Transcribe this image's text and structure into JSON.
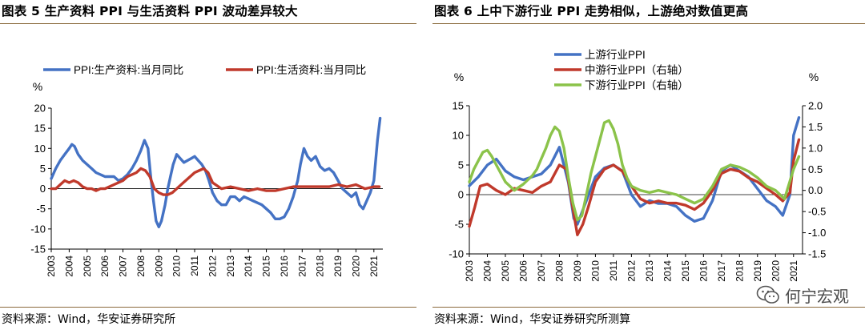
{
  "left": {
    "title": "图表 5 生产资料 PPI 与生活资料 PPI 波动差异较大",
    "source": "资料来源：Wind，华安证券研究所"
  },
  "right": {
    "title": "图表 6 上中下游行业 PPI 走势相似，上游绝对数值更高",
    "source": "资料来源：Wind，华安证券研究所测算"
  },
  "watermark": {
    "text": "何宁宏观",
    "icon": "wechat-icon"
  },
  "chart_data": [
    {
      "type": "line",
      "title": "生产资料 PPI 与生活资料 PPI 波动差异较大",
      "ylabel": "%",
      "ylim": [
        -15,
        20
      ],
      "yticks": [
        -15,
        -10,
        -5,
        0,
        5,
        10,
        15,
        20
      ],
      "xlim": [
        2003.0,
        2021.5
      ],
      "xticks": [
        "2003",
        "2004",
        "2005",
        "2006",
        "2007",
        "2008",
        "2009",
        "2010",
        "2011",
        "2012",
        "2013",
        "2014",
        "2015",
        "2016",
        "2017",
        "2018",
        "2019",
        "2020",
        "2021"
      ],
      "legend": "top",
      "series": [
        {
          "name": "PPI:生产资料:当月同比",
          "color": "#4472C4",
          "x": [
            2003.0,
            2003.25,
            2003.5,
            2003.75,
            2004.0,
            2004.15,
            2004.3,
            2004.5,
            2004.75,
            2005.0,
            2005.25,
            2005.5,
            2005.75,
            2006.0,
            2006.25,
            2006.5,
            2006.75,
            2007.0,
            2007.25,
            2007.5,
            2007.75,
            2008.0,
            2008.2,
            2008.4,
            2008.55,
            2008.7,
            2008.85,
            2009.0,
            2009.15,
            2009.35,
            2009.5,
            2009.65,
            2009.8,
            2010.0,
            2010.2,
            2010.4,
            2010.6,
            2010.8,
            2011.0,
            2011.2,
            2011.4,
            2011.6,
            2011.8,
            2012.0,
            2012.25,
            2012.5,
            2012.75,
            2013.0,
            2013.25,
            2013.5,
            2013.75,
            2014.0,
            2014.25,
            2014.5,
            2014.75,
            2015.0,
            2015.25,
            2015.5,
            2015.75,
            2016.0,
            2016.25,
            2016.5,
            2016.75,
            2016.9,
            2017.1,
            2017.3,
            2017.5,
            2017.75,
            2018.0,
            2018.25,
            2018.5,
            2018.75,
            2019.0,
            2019.25,
            2019.5,
            2019.75,
            2020.0,
            2020.2,
            2020.4,
            2020.6,
            2020.8,
            2021.0,
            2021.2,
            2021.35
          ],
          "values": [
            2.5,
            5,
            7,
            8.5,
            10,
            11,
            10.5,
            8.5,
            7,
            6,
            5,
            4,
            3.5,
            3,
            3,
            3,
            2,
            2.5,
            3.5,
            5,
            7,
            9.5,
            12,
            10,
            3,
            -3,
            -8,
            -9.5,
            -8,
            -4,
            0,
            3,
            6,
            8.5,
            7.5,
            6.5,
            7,
            7.5,
            8,
            7,
            6,
            4.5,
            2,
            -1,
            -3,
            -4,
            -4,
            -2,
            -2,
            -3,
            -2,
            -2.5,
            -3,
            -3.5,
            -4,
            -5,
            -6,
            -7.5,
            -7.5,
            -7,
            -5,
            -2,
            2,
            6,
            10,
            8,
            7,
            8,
            5.5,
            4.5,
            5,
            4,
            2,
            0,
            -1,
            -2,
            -1,
            -4,
            -5,
            -3,
            -1,
            2,
            12,
            17.5
          ]
        },
        {
          "name": "PPI:生活资料:当月同比",
          "color": "#C0392B",
          "x": [
            2003.0,
            2003.25,
            2003.5,
            2003.75,
            2004.0,
            2004.25,
            2004.5,
            2004.75,
            2005.0,
            2005.25,
            2005.5,
            2005.75,
            2006.0,
            2006.25,
            2006.5,
            2006.75,
            2007.0,
            2007.25,
            2007.5,
            2007.75,
            2008.0,
            2008.25,
            2008.5,
            2008.75,
            2009.0,
            2009.25,
            2009.5,
            2009.75,
            2010.0,
            2010.25,
            2010.5,
            2010.75,
            2011.0,
            2011.25,
            2011.5,
            2011.75,
            2012.0,
            2012.5,
            2013.0,
            2013.5,
            2014.0,
            2014.5,
            2015.0,
            2015.5,
            2016.0,
            2016.5,
            2017.0,
            2017.5,
            2018.0,
            2018.5,
            2019.0,
            2019.5,
            2020.0,
            2020.5,
            2021.0,
            2021.3
          ],
          "values": [
            0,
            0,
            1,
            2,
            1.5,
            2,
            1.5,
            0.5,
            0,
            0,
            -0.5,
            0,
            0,
            0.5,
            1,
            1.5,
            2,
            3,
            3.5,
            4,
            5,
            4.5,
            3,
            0,
            -1,
            -1.5,
            -1.5,
            -1,
            0,
            1,
            2,
            3,
            4,
            4.5,
            5,
            4,
            1.5,
            0,
            0.5,
            0,
            -0.5,
            0,
            -0.5,
            -0.5,
            0,
            0.5,
            0.5,
            0.5,
            0.5,
            0.5,
            1,
            0.5,
            1,
            0,
            0.5,
            0.5
          ]
        }
      ]
    },
    {
      "type": "line",
      "title": "上中下游行业 PPI 走势相似，上游绝对数值更高",
      "ylabel": "%",
      "ylim": [
        -10,
        15
      ],
      "yticks": [
        -10,
        -5,
        0,
        5,
        10,
        15
      ],
      "y2label": "%",
      "y2lim": [
        -1.5,
        2.0
      ],
      "y2ticks": [
        "-1.5",
        "-1.0",
        "-0.5",
        "0.0",
        "0.5",
        "1.0",
        "1.5",
        "2.0"
      ],
      "xlim": [
        2003.0,
        2021.5
      ],
      "xticks": [
        "2003",
        "2004",
        "2005",
        "2006",
        "2007",
        "2008",
        "2009",
        "2010",
        "2011",
        "2012",
        "2013",
        "2014",
        "2015",
        "2016",
        "2017",
        "2018",
        "2019",
        "2020",
        "2021"
      ],
      "legend": "top-left",
      "series": [
        {
          "name": "上游行业PPI",
          "axis": "left",
          "color": "#4472C4",
          "x": [
            2003.0,
            2003.5,
            2004.0,
            2004.5,
            2005.0,
            2005.5,
            2006.0,
            2006.5,
            2007.0,
            2007.5,
            2008.0,
            2008.5,
            2008.8,
            2009.0,
            2009.5,
            2010.0,
            2010.5,
            2011.0,
            2011.5,
            2012.0,
            2012.5,
            2013.0,
            2013.5,
            2014.0,
            2014.5,
            2015.0,
            2015.5,
            2016.0,
            2016.5,
            2017.0,
            2017.5,
            2018.0,
            2018.5,
            2019.0,
            2019.5,
            2020.0,
            2020.4,
            2020.8,
            2021.0,
            2021.3
          ],
          "values": [
            1.5,
            3,
            5,
            6,
            4,
            3,
            2.5,
            3,
            3.5,
            5,
            8,
            2,
            -4,
            -5,
            -1,
            3,
            4.5,
            5,
            4,
            0,
            -2,
            -1,
            -1.5,
            -1.5,
            -2,
            -3.5,
            -4.5,
            -4,
            -1,
            4,
            5,
            4,
            3,
            1,
            -1,
            -2,
            -3.5,
            0,
            10,
            13
          ]
        },
        {
          "name": "中游行业PPI（右轴）",
          "axis": "right",
          "color": "#C0392B",
          "x": [
            2003.0,
            2003.3,
            2003.6,
            2004.0,
            2004.5,
            2005.0,
            2005.5,
            2006.0,
            2006.5,
            2007.0,
            2007.5,
            2008.0,
            2008.4,
            2008.7,
            2009.0,
            2009.3,
            2009.6,
            2010.0,
            2010.5,
            2011.0,
            2011.5,
            2012.0,
            2012.5,
            2013.0,
            2013.5,
            2014.0,
            2014.5,
            2015.0,
            2015.5,
            2016.0,
            2016.5,
            2017.0,
            2017.5,
            2018.0,
            2018.5,
            2019.0,
            2019.5,
            2020.0,
            2020.4,
            2020.8,
            2021.0,
            2021.3
          ],
          "values": [
            -0.85,
            -0.4,
            0.1,
            0.15,
            0.0,
            -0.1,
            0.05,
            0.0,
            -0.05,
            0.1,
            0.2,
            0.6,
            0.5,
            -0.3,
            -1.05,
            -0.8,
            -0.4,
            0.2,
            0.5,
            0.6,
            0.45,
            0.1,
            -0.2,
            -0.3,
            -0.25,
            -0.3,
            -0.3,
            -0.35,
            -0.45,
            -0.3,
            0.0,
            0.4,
            0.5,
            0.45,
            0.3,
            0.2,
            0.05,
            -0.1,
            -0.25,
            -0.05,
            0.7,
            1.2
          ]
        },
        {
          "name": "下游行业PPI（右轴）",
          "axis": "right",
          "color": "#8BC34A",
          "x": [
            2003.0,
            2003.25,
            2003.5,
            2003.75,
            2004.0,
            2004.25,
            2004.5,
            2004.75,
            2005.0,
            2005.5,
            2006.0,
            2006.5,
            2006.75,
            2007.0,
            2007.25,
            2007.5,
            2007.75,
            2008.0,
            2008.25,
            2008.5,
            2008.75,
            2009.0,
            2009.25,
            2009.5,
            2009.75,
            2010.0,
            2010.25,
            2010.5,
            2010.75,
            2011.0,
            2011.25,
            2011.5,
            2011.75,
            2012.0,
            2012.5,
            2013.0,
            2013.5,
            2014.0,
            2014.5,
            2015.0,
            2015.5,
            2016.0,
            2016.5,
            2017.0,
            2017.5,
            2018.0,
            2018.5,
            2019.0,
            2019.5,
            2020.0,
            2020.5,
            2021.0,
            2021.3
          ],
          "values": [
            0.2,
            0.5,
            0.7,
            0.9,
            0.95,
            0.8,
            0.6,
            0.4,
            0.2,
            0.0,
            0.15,
            0.35,
            0.5,
            0.75,
            1.0,
            1.3,
            1.5,
            1.4,
            1.0,
            0.3,
            -0.3,
            -0.7,
            -0.6,
            -0.1,
            0.4,
            0.8,
            1.2,
            1.6,
            1.65,
            1.45,
            1.1,
            0.6,
            0.3,
            0.1,
            0.0,
            -0.05,
            0.0,
            -0.05,
            -0.1,
            -0.2,
            -0.3,
            -0.2,
            0.1,
            0.5,
            0.6,
            0.55,
            0.45,
            0.3,
            0.1,
            0.0,
            -0.2,
            0.5,
            0.8
          ]
        }
      ]
    }
  ]
}
